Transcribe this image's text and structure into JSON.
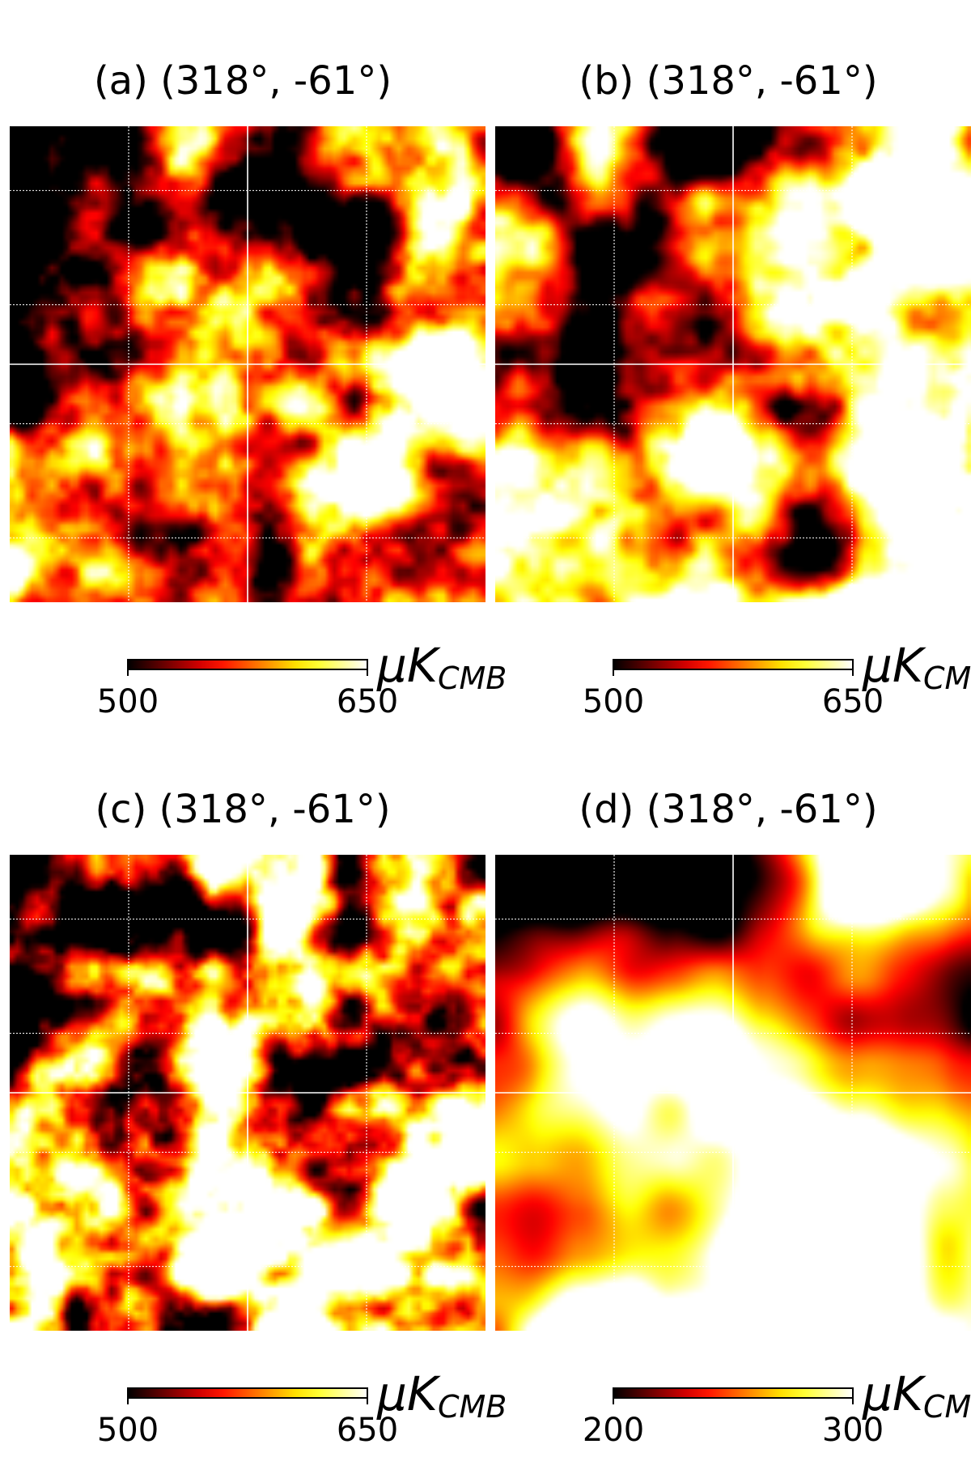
{
  "chart_data": [
    {
      "type": "heatmap",
      "title": "(a) (318°, -61°)",
      "colormap": "hot",
      "colorbar": {
        "min": 500,
        "max": 650,
        "tick_labels": [
          "500",
          "650"
        ],
        "unit_main": "μK",
        "unit_sub": "CMB"
      },
      "grid": true,
      "grid_lines_solid": [
        0.5
      ],
      "grid_lines_dotted": [
        0.25,
        0.75,
        0.135,
        0.375,
        0.625,
        0.865
      ],
      "pattern": {
        "seed": 11,
        "freq": 5.5,
        "octaves": 4,
        "gain": 0.55,
        "bias": -0.05,
        "gradient": [
          0.55,
          0.5
        ],
        "contrast": 1.45
      }
    },
    {
      "type": "heatmap",
      "title": "(b) (318°, -61°)",
      "colormap": "hot",
      "colorbar": {
        "min": 500,
        "max": 650,
        "tick_labels": [
          "500",
          "650"
        ],
        "unit_main": "μK",
        "unit_sub": "CMB"
      },
      "grid": true,
      "grid_lines_solid": [
        0.5
      ],
      "grid_lines_dotted": [
        0.25,
        0.75,
        0.135,
        0.375,
        0.625,
        0.865
      ],
      "pattern": {
        "seed": 29,
        "freq": 4.5,
        "octaves": 4,
        "gain": 0.5,
        "bias": 0.05,
        "gradient": [
          0.7,
          0.7
        ],
        "contrast": 1.7
      }
    },
    {
      "type": "heatmap",
      "title": "(c) (318°, -61°)",
      "colormap": "hot",
      "colorbar": {
        "min": 500,
        "max": 650,
        "tick_labels": [
          "500",
          "650"
        ],
        "unit_main": "μK",
        "unit_sub": "CMB"
      },
      "grid": true,
      "grid_lines_solid": [
        0.5
      ],
      "grid_lines_dotted": [
        0.25,
        0.75,
        0.135,
        0.375,
        0.625,
        0.865
      ],
      "pattern": {
        "seed": 47,
        "freq": 7.0,
        "octaves": 4,
        "gain": 0.5,
        "bias": 0.12,
        "gradient": [
          0.5,
          0.55
        ],
        "contrast": 1.75
      }
    },
    {
      "type": "heatmap",
      "title": "(d) (318°, -61°)",
      "colormap": "hot",
      "colorbar": {
        "min": 200,
        "max": 300,
        "tick_labels": [
          "200",
          "300"
        ],
        "unit_main": "μK",
        "unit_sub": "CMB"
      },
      "grid": true,
      "grid_lines_solid": [
        0.5
      ],
      "grid_lines_dotted": [
        0.25,
        0.75,
        0.135,
        0.375,
        0.625,
        0.865
      ],
      "pattern": {
        "seed": 83,
        "freq": 2.6,
        "octaves": 3,
        "gain": 0.45,
        "bias": 0.0,
        "gradient": [
          0.9,
          1.0
        ],
        "contrast": 1.6
      }
    }
  ]
}
